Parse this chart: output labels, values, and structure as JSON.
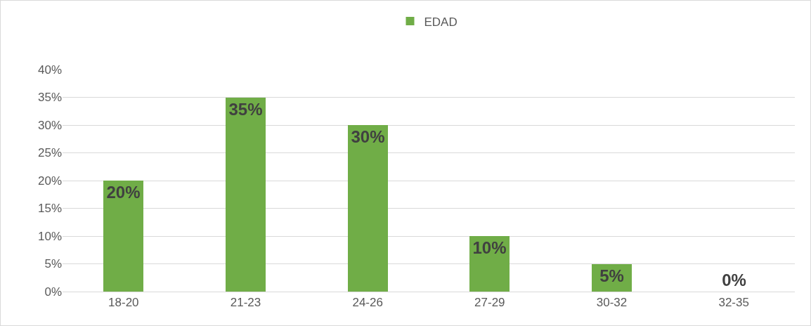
{
  "chart_data": {
    "type": "bar",
    "categories": [
      "18-20",
      "21-23",
      "24-26",
      "27-29",
      "30-32",
      "32-35"
    ],
    "series": [
      {
        "name": "EDAD",
        "color": "#70ad47",
        "values": [
          20,
          35,
          30,
          10,
          5,
          0
        ],
        "value_labels": [
          "20%",
          "35%",
          "30%",
          "10%",
          "5%",
          "0%"
        ]
      }
    ],
    "ylim": [
      0,
      40
    ],
    "yticks": [
      {
        "value": 0,
        "label": "0%"
      },
      {
        "value": 5,
        "label": "5%"
      },
      {
        "value": 10,
        "label": "10%"
      },
      {
        "value": 15,
        "label": "15%"
      },
      {
        "value": 20,
        "label": "20%"
      },
      {
        "value": 25,
        "label": "25%"
      },
      {
        "value": 30,
        "label": "30%"
      },
      {
        "value": 35,
        "label": "35%"
      },
      {
        "value": 40,
        "label": "40%"
      }
    ],
    "grid": "y",
    "legend": "top"
  }
}
